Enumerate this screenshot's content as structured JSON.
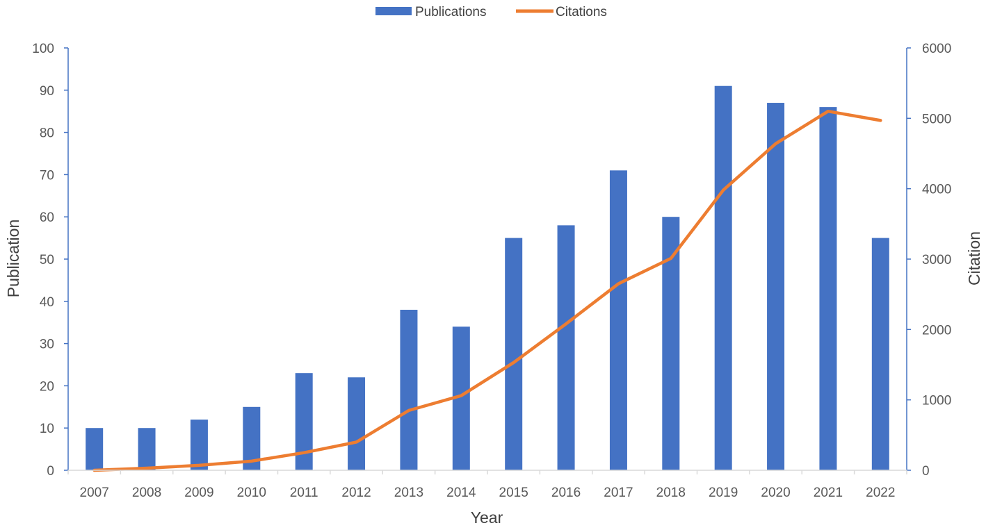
{
  "chart_data": {
    "type": "bar",
    "categories": [
      "2007",
      "2008",
      "2009",
      "2010",
      "2011",
      "2012",
      "2013",
      "2014",
      "2015",
      "2016",
      "2017",
      "2018",
      "2019",
      "2020",
      "2021",
      "2022"
    ],
    "series": [
      {
        "name": "Publications",
        "type": "bar",
        "axis": "left",
        "color": "#4472c4",
        "values": [
          10,
          10,
          12,
          15,
          23,
          22,
          38,
          34,
          55,
          58,
          71,
          60,
          91,
          87,
          86,
          55
        ]
      },
      {
        "name": "Citations",
        "type": "line",
        "axis": "right",
        "color": "#ed7d31",
        "values": [
          0,
          30,
          70,
          130,
          250,
          400,
          850,
          1060,
          1530,
          2080,
          2650,
          3010,
          3980,
          4640,
          5100,
          4970
        ]
      }
    ],
    "xlabel": "Year",
    "ylabel": "Publication",
    "y2label": "Citation",
    "ylim": [
      0,
      100
    ],
    "y2lim": [
      0,
      6000
    ],
    "yticks": [
      0,
      10,
      20,
      30,
      40,
      50,
      60,
      70,
      80,
      90,
      100
    ],
    "y2ticks": [
      0,
      1000,
      2000,
      3000,
      4000,
      5000,
      6000
    ],
    "axis_color": "#4472c4",
    "grid": false,
    "legend_position": "top-center"
  }
}
